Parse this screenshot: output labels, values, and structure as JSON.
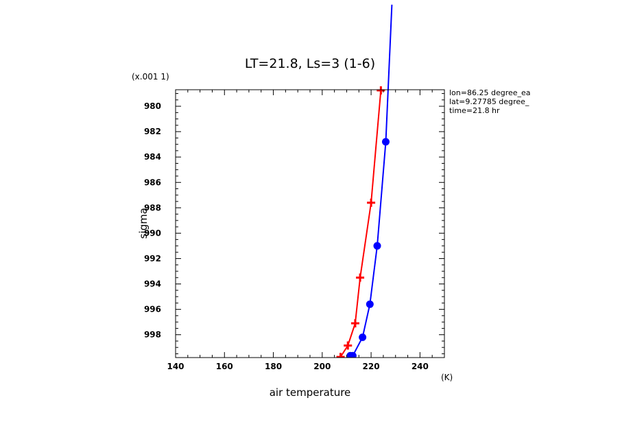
{
  "chart_data": {
    "type": "line",
    "title": "LT=21.8, Ls=3 (1-6)",
    "xlabel": "air temperature",
    "ylabel": "sigma",
    "x_unit": "(K)",
    "y_scale_note": "(x.001 1)",
    "xlim": [
      140,
      250
    ],
    "ylim": [
      999.8,
      978.7
    ],
    "x_ticks": [
      140,
      160,
      180,
      200,
      220,
      240
    ],
    "y_ticks": [
      980,
      982,
      984,
      986,
      988,
      990,
      992,
      994,
      996,
      998
    ],
    "y_tick_labels": [
      "980",
      "982",
      "984",
      "986",
      "988",
      "990",
      "992",
      "994",
      "996",
      "998"
    ],
    "info_lines": [
      "lon=86.25 degree_ea",
      "lat=9.27785 degree_",
      "time=21.8 hr"
    ],
    "series": [
      {
        "name": "red",
        "color": "#ff0000",
        "marker": "cross",
        "points": [
          {
            "x": 207.5,
            "y": 999.75
          },
          {
            "x": 210.5,
            "y": 998.85
          },
          {
            "x": 213.5,
            "y": 997.1
          },
          {
            "x": 215.5,
            "y": 993.5
          },
          {
            "x": 220.0,
            "y": 987.6
          },
          {
            "x": 224.0,
            "y": 978.75
          }
        ]
      },
      {
        "name": "blue",
        "color": "#0000ff",
        "marker": "circle",
        "points": [
          {
            "x": 211.5,
            "y": 999.65
          },
          {
            "x": 212.5,
            "y": 999.65
          },
          {
            "x": 216.5,
            "y": 998.2
          },
          {
            "x": 219.5,
            "y": 995.6
          },
          {
            "x": 222.5,
            "y": 991.0
          },
          {
            "x": 226.0,
            "y": 982.8
          },
          {
            "x": 228.5,
            "y": 972.0
          }
        ]
      }
    ]
  }
}
